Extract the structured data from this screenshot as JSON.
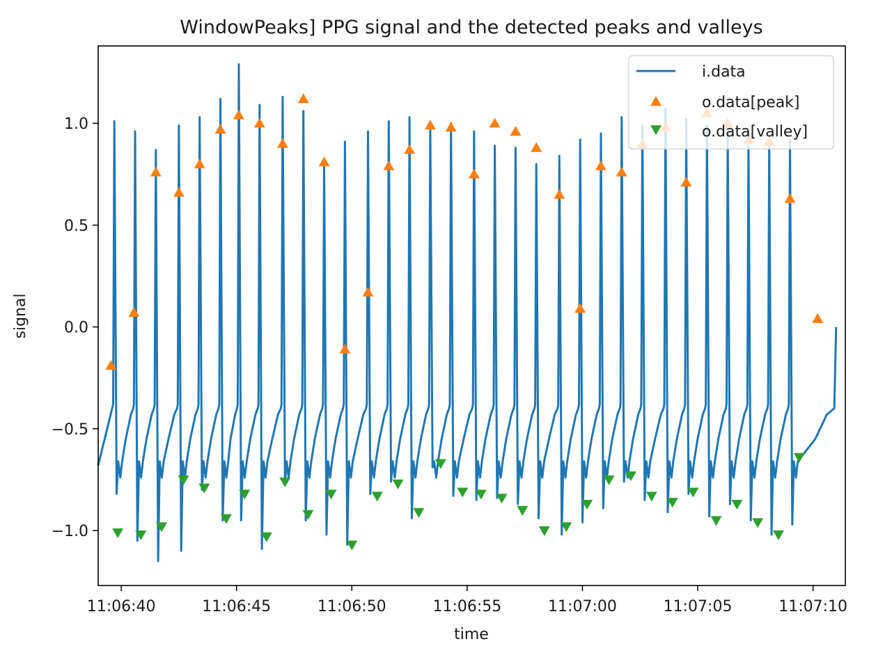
{
  "chart_data": {
    "type": "line",
    "title": "WindowPeaks] PPG signal and the detected peaks and valleys",
    "xlabel": "time",
    "ylabel": "signal",
    "x_unit": "seconds after 11:06:40",
    "xlim": [
      -1.0,
      31.4
    ],
    "ylim": [
      -1.27,
      1.38
    ],
    "x_ticks": [
      {
        "value": 0,
        "label": "11:06:40"
      },
      {
        "value": 5,
        "label": "11:06:45"
      },
      {
        "value": 10,
        "label": "11:06:50"
      },
      {
        "value": 15,
        "label": "11:06:55"
      },
      {
        "value": 20,
        "label": "11:07:00"
      },
      {
        "value": 25,
        "label": "11:07:05"
      },
      {
        "value": 30,
        "label": "11:07:10"
      }
    ],
    "y_ticks": [
      {
        "value": 1.0,
        "label": "1.0"
      },
      {
        "value": 0.5,
        "label": "0.5"
      },
      {
        "value": 0.0,
        "label": "0.0"
      },
      {
        "value": -0.5,
        "label": "−0.5"
      },
      {
        "value": -1.0,
        "label": "−1.0"
      }
    ],
    "grid": false,
    "legend_position": "top-right",
    "series": [
      {
        "name": "i.data",
        "style": "line",
        "color": "#1f77b4",
        "beats_t": [
          -0.3,
          0.6,
          1.5,
          2.5,
          3.4,
          4.3,
          5.1,
          6.0,
          7.0,
          7.9,
          8.8,
          9.7,
          10.7,
          11.6,
          12.5,
          13.4,
          14.3,
          15.3,
          16.2,
          17.1,
          18.0,
          19.0,
          19.9,
          20.8,
          21.7,
          22.6,
          23.6,
          24.5,
          25.4,
          26.3,
          27.2,
          28.1,
          29.0
        ],
        "beats_max": [
          1.01,
          0.96,
          0.87,
          0.99,
          1.03,
          1.12,
          1.29,
          1.09,
          1.13,
          1.06,
          0.8,
          0.91,
          0.96,
          1.01,
          1.03,
          0.99,
          1.0,
          0.96,
          0.89,
          0.88,
          0.8,
          0.84,
          0.92,
          0.95,
          1.03,
          0.99,
          1.07,
          1.02,
          0.99,
          0.96,
          0.91,
          0.91,
          0.92
        ],
        "beats_min": [
          -0.82,
          -1.05,
          -1.15,
          -1.1,
          -0.8,
          -0.95,
          -0.95,
          -1.09,
          -0.77,
          -0.95,
          -1.02,
          -1.07,
          -0.82,
          -0.76,
          -0.94,
          -0.69,
          -0.83,
          -0.85,
          -0.84,
          -0.87,
          -0.94,
          -1.02,
          -0.96,
          -0.89,
          -0.76,
          -0.85,
          -0.91,
          -0.82,
          -0.93,
          -0.87,
          -0.95,
          -1.02,
          -0.97
        ],
        "t_start": -1.0,
        "y_start": -0.68,
        "t_end": 31.0,
        "y_end": 0.0
      },
      {
        "name": "o.data[peak]",
        "style": "marker",
        "marker": "triangle-up",
        "color": "#ff7f0e",
        "x": [
          -0.45,
          0.55,
          1.5,
          2.5,
          3.4,
          4.3,
          5.1,
          6.0,
          7.0,
          7.9,
          8.8,
          9.7,
          10.7,
          11.6,
          12.5,
          13.4,
          14.3,
          15.3,
          16.2,
          17.1,
          18.0,
          19.0,
          19.9,
          20.8,
          21.7,
          22.6,
          23.6,
          24.5,
          25.4,
          26.3,
          27.2,
          28.1,
          29.0,
          30.2
        ],
        "values": [
          -0.19,
          0.07,
          0.76,
          0.66,
          0.8,
          0.97,
          1.04,
          1.0,
          0.9,
          1.12,
          0.81,
          -0.11,
          0.17,
          0.79,
          0.87,
          0.99,
          0.98,
          0.75,
          1.0,
          0.96,
          0.88,
          0.65,
          0.09,
          0.79,
          0.76,
          0.9,
          0.98,
          0.71,
          1.05,
          1.0,
          0.92,
          0.91,
          0.63,
          0.04
        ]
      },
      {
        "name": "o.data[valley]",
        "style": "marker",
        "marker": "triangle-down",
        "color": "#2ca02c",
        "x": [
          -0.15,
          0.85,
          1.75,
          2.7,
          3.6,
          4.55,
          5.35,
          6.3,
          7.1,
          8.1,
          9.1,
          10.0,
          11.1,
          12.0,
          12.9,
          13.85,
          14.8,
          15.6,
          16.5,
          17.4,
          18.35,
          19.3,
          20.2,
          21.15,
          22.1,
          23.0,
          23.9,
          24.8,
          25.8,
          26.7,
          27.6,
          28.5,
          29.4
        ],
        "values": [
          -1.01,
          -1.02,
          -0.98,
          -0.75,
          -0.79,
          -0.94,
          -0.82,
          -1.03,
          -0.76,
          -0.92,
          -0.82,
          -1.07,
          -0.83,
          -0.77,
          -0.91,
          -0.67,
          -0.81,
          -0.82,
          -0.84,
          -0.9,
          -1.0,
          -0.98,
          -0.87,
          -0.75,
          -0.73,
          -0.83,
          -0.86,
          -0.81,
          -0.95,
          -0.87,
          -0.96,
          -1.02,
          -0.64
        ]
      }
    ]
  }
}
